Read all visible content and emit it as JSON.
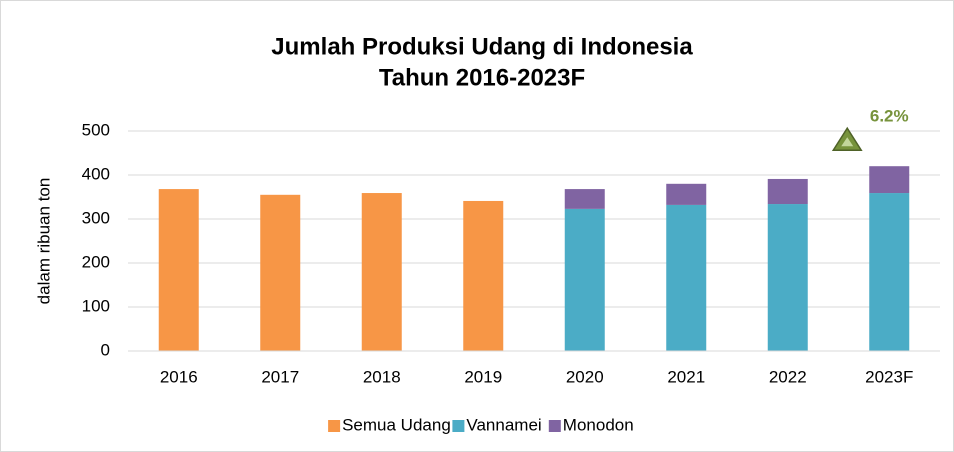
{
  "chart_data": {
    "type": "stacked_bar",
    "title": [
      "Jumlah Produksi Udang di Indonesia",
      "Tahun 2016-2023F"
    ],
    "y_label": "dalam ribuan ton",
    "categories": [
      "2016",
      "2017",
      "2018",
      "2019",
      "2020",
      "2021",
      "2022",
      "2023F"
    ],
    "series": [
      {
        "name": "Semua Udang",
        "color": "#f79646",
        "values": [
          368,
          355,
          359,
          341,
          null,
          null,
          null,
          null
        ]
      },
      {
        "name": "Vannamei",
        "color": "#4bacc6",
        "values": [
          null,
          null,
          null,
          null,
          323,
          332,
          334,
          359
        ]
      },
      {
        "name": "Monodon",
        "color": "#8064a2",
        "values": [
          null,
          null,
          null,
          null,
          45,
          48,
          57,
          61
        ]
      }
    ],
    "ylim": [
      0,
      500
    ],
    "yticks": [
      0,
      100,
      200,
      300,
      400,
      500
    ],
    "grid": true,
    "annotation": {
      "text": "6.2%",
      "color": "#77933c"
    },
    "legend": "bottom"
  }
}
